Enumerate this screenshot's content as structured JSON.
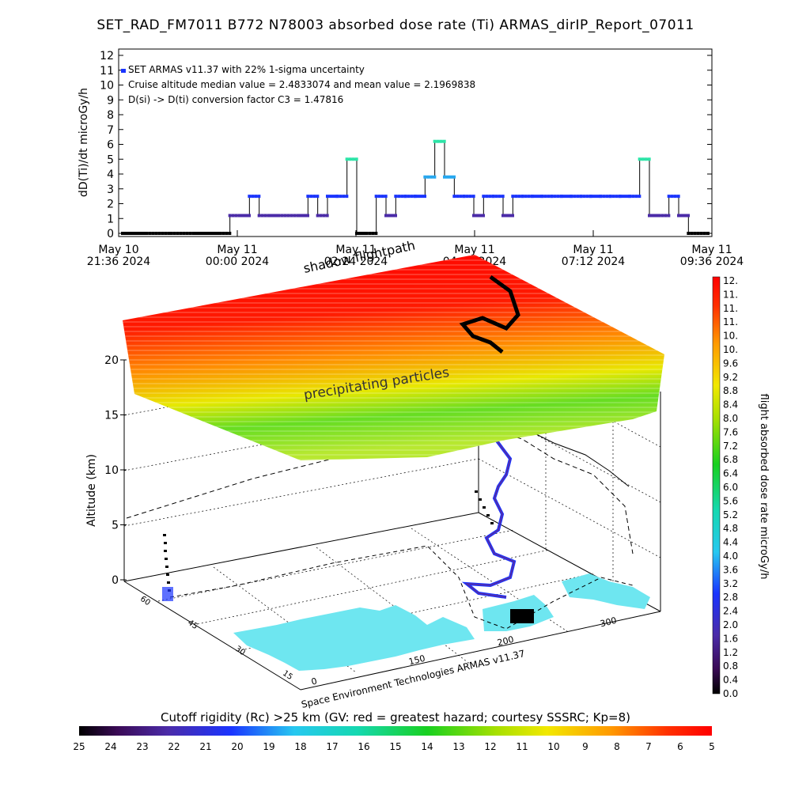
{
  "title": "SET_RAD_FM7011  B772 N78003 absorbed dose rate (Ti) ARMAS_dirIP_Report_07011",
  "timeseries": {
    "ylabel": "dD(Ti)/dt microGy/h",
    "ylim": [
      0,
      12
    ],
    "yticks": [
      "0",
      "1",
      "2",
      "3",
      "4",
      "5",
      "6",
      "7",
      "8",
      "9",
      "10",
      "11",
      "12"
    ],
    "xticks": [
      {
        "line1": "May 10",
        "line2": "21:36 2024"
      },
      {
        "line1": "May 11",
        "line2": "00:00 2024"
      },
      {
        "line1": "May 11",
        "line2": "02:24 2024"
      },
      {
        "line1": "May 11",
        "line2": "04:48 2024"
      },
      {
        "line1": "May 11",
        "line2": "07:12 2024"
      },
      {
        "line1": "May 11",
        "line2": "09:36 2024"
      }
    ],
    "annotations": [
      "SET ARMAS v11.37 with 22% 1-sigma uncertainty",
      "Cruise altitude median value = 2.4833074 and mean value = 2.1969838",
      "D(si) -> D(ti) conversion factor C3 = 1.47816"
    ]
  },
  "chart_data": [
    {
      "type": "line",
      "title": "SET_RAD_FM7011  B772 N78003 absorbed dose rate (Ti) ARMAS_dirIP_Report_07011",
      "xlabel": "",
      "ylabel": "dD(Ti)/dt microGy/h",
      "ylim": [
        0,
        12
      ],
      "x_units": "hours since May 10 21:36 2024 (axis labelled in date/time)",
      "series": [
        {
          "name": "",
          "x": [
            0,
            0.5,
            1,
            1.5,
            2,
            2.2,
            2.4,
            2.6,
            2.8,
            3.0,
            3.2,
            3.4,
            3.6,
            3.8,
            4.0,
            4.2,
            4.4,
            4.6,
            4.8,
            5.0,
            5.2,
            5.4,
            5.6,
            5.8,
            6.0,
            6.2,
            6.4,
            6.6,
            6.8,
            7.0,
            7.2,
            7.4,
            7.6,
            7.8,
            8.0,
            8.2,
            8.4,
            8.6,
            8.8,
            9.0,
            9.2,
            9.4,
            9.6,
            9.8,
            10.0,
            10.2,
            10.4,
            10.6,
            10.8,
            11.0,
            11.2,
            11.4,
            11.6,
            11.8,
            12.0
          ],
          "values": [
            0,
            0,
            0,
            0,
            0,
            1.2,
            1.2,
            2.5,
            1.2,
            1.2,
            1.2,
            1.2,
            1.2,
            2.5,
            1.2,
            2.5,
            2.5,
            5.0,
            0,
            0,
            2.5,
            1.2,
            2.5,
            2.5,
            2.5,
            3.8,
            6.2,
            3.8,
            2.5,
            2.5,
            1.2,
            2.5,
            2.5,
            1.2,
            2.5,
            2.5,
            2.5,
            2.5,
            2.5,
            2.5,
            2.5,
            2.5,
            2.5,
            2.5,
            2.5,
            2.5,
            2.5,
            5.0,
            1.2,
            1.2,
            2.5,
            1.2,
            0,
            0,
            0
          ]
        }
      ]
    },
    {
      "type": "3d-surface",
      "title": "",
      "zlabel": "Altitude (km)",
      "zticks": [
        "0",
        "5",
        "10",
        "15",
        "20"
      ],
      "latticks": [
        "60",
        "45",
        "30",
        "15"
      ],
      "lonticks": [
        "0",
        "150",
        "200",
        "300"
      ],
      "annotations": [
        "shadow flightpath",
        "precipitating particles"
      ],
      "credit": "Space Environment Technologies ARMAS v11.37",
      "colorbar": {
        "label": "flight absorbed dose rate microGy/h",
        "ticks": [
          "12.",
          "11.",
          "11.",
          "11.",
          "10.",
          "10.",
          "9.6",
          "9.2",
          "8.8",
          "8.4",
          "8.0",
          "7.6",
          "7.2",
          "6.8",
          "6.4",
          "6.0",
          "5.6",
          "5.2",
          "4.8",
          "4.4",
          "4.0",
          "3.6",
          "3.2",
          "2.8",
          "2.4",
          "2.0",
          "1.6",
          "1.2",
          "0.8",
          "0.4",
          "0.0"
        ]
      }
    },
    {
      "type": "colorbar",
      "title": "Cutoff rigidity (Rc) >25 km (GV: red = greatest hazard; courtesy SSSRC; Kp=8)",
      "ticks": [
        "25",
        "24",
        "23",
        "22",
        "21",
        "20",
        "19",
        "18",
        "17",
        "16",
        "15",
        "14",
        "13",
        "12",
        "11",
        "10",
        "9",
        "8",
        "7",
        "6",
        "5"
      ]
    }
  ],
  "colors": {
    "red": "#ff0000",
    "orange": "#ff8c00",
    "yellow": "#f5f500",
    "green": "#33d633",
    "cyan": "#6ee6f0",
    "blue": "#1a34ff",
    "purple": "#5a2ca0",
    "black": "#000000"
  }
}
